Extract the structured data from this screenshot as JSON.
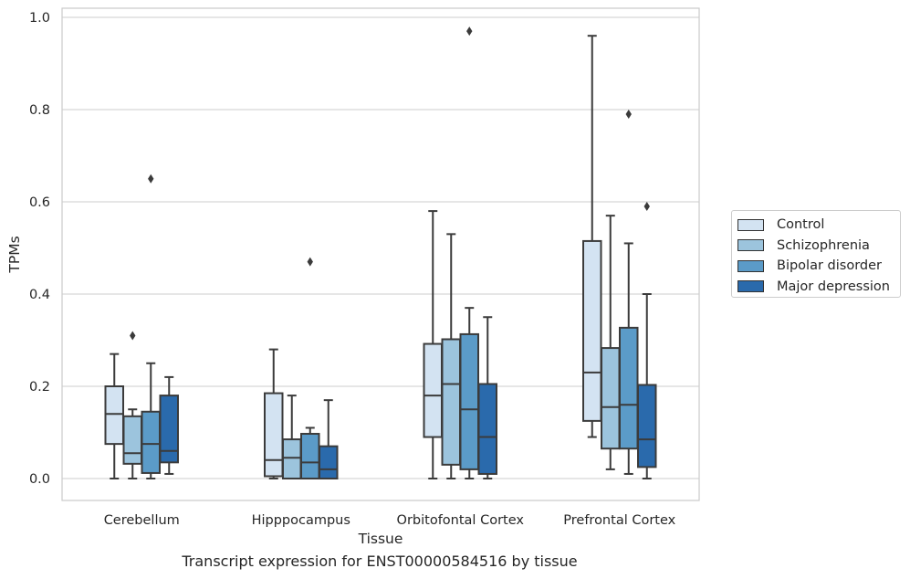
{
  "chart_data": {
    "type": "box",
    "caption": "Transcript expression for ENST00000584516 by tissue",
    "xlabel": "Tissue",
    "ylabel": "TPMs",
    "ylim": [
      -0.045,
      1.02
    ],
    "yticks": [
      "0.0",
      "0.2",
      "0.4",
      "0.6",
      "0.8",
      "1.0"
    ],
    "ytick_values": [
      0.0,
      0.2,
      0.4,
      0.6,
      0.8,
      1.0
    ],
    "grid": true,
    "legend_position": "right-center",
    "categories": [
      "Cerebellum",
      "Hipppocampus",
      "Orbitofontal Cortex",
      "Prefrontal Cortex"
    ],
    "series": [
      {
        "name": "Control",
        "color": "#d3e3f2",
        "boxes": [
          {
            "whislo": 0.0,
            "q1": 0.075,
            "med": 0.14,
            "q3": 0.2,
            "whishi": 0.27,
            "fliers": []
          },
          {
            "whislo": 0.0,
            "q1": 0.005,
            "med": 0.04,
            "q3": 0.185,
            "whishi": 0.28,
            "fliers": []
          },
          {
            "whislo": 0.0,
            "q1": 0.09,
            "med": 0.18,
            "q3": 0.292,
            "whishi": 0.58,
            "fliers": []
          },
          {
            "whislo": 0.09,
            "q1": 0.125,
            "med": 0.23,
            "q3": 0.515,
            "whishi": 0.96,
            "fliers": []
          }
        ]
      },
      {
        "name": "Schizophrenia",
        "color": "#9cc4dd",
        "boxes": [
          {
            "whislo": 0.0,
            "q1": 0.032,
            "med": 0.055,
            "q3": 0.135,
            "whishi": 0.15,
            "fliers": [
              0.31
            ]
          },
          {
            "whislo": 0.0,
            "q1": 0.0,
            "med": 0.045,
            "q3": 0.085,
            "whishi": 0.18,
            "fliers": []
          },
          {
            "whislo": 0.0,
            "q1": 0.03,
            "med": 0.205,
            "q3": 0.302,
            "whishi": 0.53,
            "fliers": []
          },
          {
            "whislo": 0.02,
            "q1": 0.065,
            "med": 0.155,
            "q3": 0.283,
            "whishi": 0.57,
            "fliers": []
          }
        ]
      },
      {
        "name": "Bipolar disorder",
        "color": "#5b9bc8",
        "boxes": [
          {
            "whislo": 0.0,
            "q1": 0.012,
            "med": 0.075,
            "q3": 0.145,
            "whishi": 0.25,
            "fliers": [
              0.65
            ]
          },
          {
            "whislo": 0.0,
            "q1": 0.0,
            "med": 0.035,
            "q3": 0.097,
            "whishi": 0.11,
            "fliers": [
              0.47
            ]
          },
          {
            "whislo": 0.0,
            "q1": 0.02,
            "med": 0.15,
            "q3": 0.313,
            "whishi": 0.37,
            "fliers": [
              0.97
            ]
          },
          {
            "whislo": 0.01,
            "q1": 0.065,
            "med": 0.16,
            "q3": 0.327,
            "whishi": 0.51,
            "fliers": [
              0.79
            ]
          }
        ]
      },
      {
        "name": "Major depression",
        "color": "#2a6aac",
        "boxes": [
          {
            "whislo": 0.01,
            "q1": 0.035,
            "med": 0.06,
            "q3": 0.18,
            "whishi": 0.22,
            "fliers": []
          },
          {
            "whislo": 0.0,
            "q1": 0.0,
            "med": 0.02,
            "q3": 0.07,
            "whishi": 0.17,
            "fliers": []
          },
          {
            "whislo": 0.0,
            "q1": 0.01,
            "med": 0.09,
            "q3": 0.205,
            "whishi": 0.35,
            "fliers": []
          },
          {
            "whislo": 0.0,
            "q1": 0.025,
            "med": 0.085,
            "q3": 0.203,
            "whishi": 0.4,
            "fliers": [
              0.59
            ]
          }
        ]
      }
    ]
  }
}
